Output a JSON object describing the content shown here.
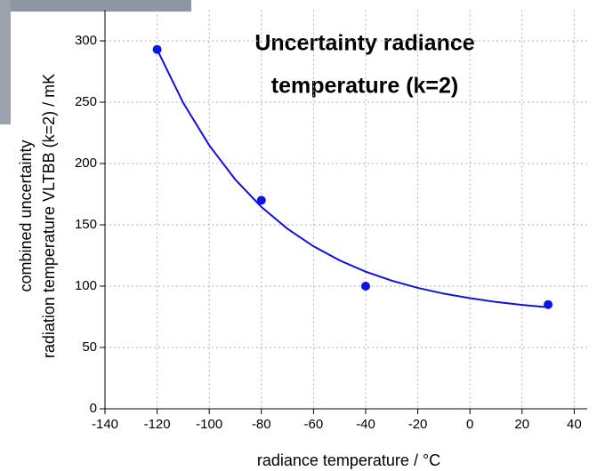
{
  "chart_data": {
    "type": "scatter",
    "title": [
      "Uncertainty radiance",
      "temperature (k=2)"
    ],
    "x_label": "radiance temperature / °C",
    "y_label": [
      "combined uncertainty",
      "radiation temperature VLTBB (k=2) / mK"
    ],
    "xlim": [
      -140,
      45
    ],
    "ylim": [
      0,
      325
    ],
    "xticks": [
      -140,
      -120,
      -100,
      -80,
      -60,
      -40,
      -20,
      0,
      20,
      40
    ],
    "yticks": [
      0,
      50,
      100,
      150,
      200,
      250,
      300
    ],
    "grid": true,
    "series": [
      {
        "kind": "points",
        "color": "#0a14e6",
        "x": [
          -120,
          -80,
          -40,
          30
        ],
        "values": [
          293,
          170,
          100,
          85
        ]
      },
      {
        "kind": "line",
        "color": "#1010dd",
        "x": [
          -120,
          -110,
          -100,
          -90,
          -80,
          -70,
          -60,
          -50,
          -40,
          -30,
          -20,
          -10,
          0,
          10,
          20,
          30
        ],
        "values": [
          293,
          249.5,
          214.8,
          186.9,
          164.6,
          146.8,
          132.5,
          121.0,
          111.8,
          104.5,
          98.6,
          93.9,
          90.2,
          87.1,
          84.7,
          82.8
        ]
      }
    ]
  }
}
